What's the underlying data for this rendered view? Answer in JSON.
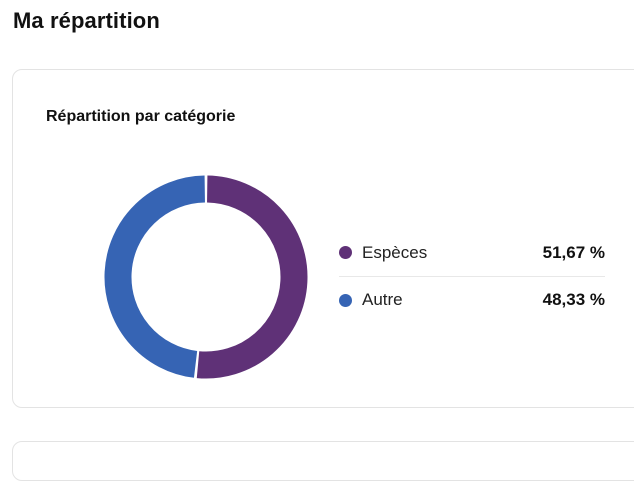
{
  "page": {
    "title": "Ma répartition"
  },
  "card": {
    "title": "Répartition par catégorie",
    "items": [
      {
        "label": "Espèces",
        "value": "51,67 %",
        "percent": 51.67,
        "color": "#5f3177"
      },
      {
        "label": "Autre",
        "value": "48,33 %",
        "percent": 48.33,
        "color": "#3664b4"
      }
    ]
  },
  "chart_data": {
    "type": "pie",
    "categories": [
      "Espèces",
      "Autre"
    ],
    "values": [
      51.67,
      48.33
    ],
    "colors": [
      "#5f3177",
      "#3664b4"
    ],
    "title": "Répartition par catégorie",
    "legend": "right"
  }
}
